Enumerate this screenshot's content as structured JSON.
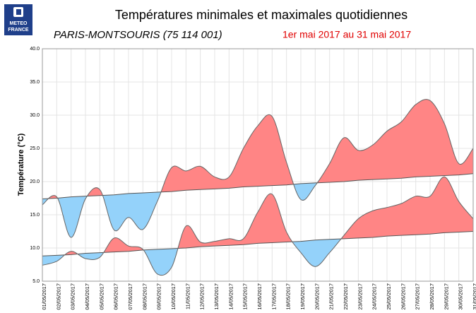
{
  "chart_data": {
    "type": "line",
    "logo": [
      "METEO",
      "FRANCE"
    ],
    "title": "Températures minimales et maximales quotidiennes",
    "subtitle": "PARIS-MONTSOURIS (75 114 001)",
    "period": "1er mai 2017 au 31 mai 2017",
    "y_label": "Température (°C)",
    "categories": [
      "01/05/2017",
      "02/05/2017",
      "03/05/2017",
      "04/05/2017",
      "05/05/2017",
      "06/05/2017",
      "07/05/2017",
      "08/05/2017",
      "09/05/2017",
      "10/05/2017",
      "11/05/2017",
      "12/05/2017",
      "13/05/2017",
      "14/05/2017",
      "15/05/2017",
      "16/05/2017",
      "17/05/2017",
      "18/05/2017",
      "19/05/2017",
      "20/05/2017",
      "21/05/2017",
      "22/05/2017",
      "23/05/2017",
      "24/05/2017",
      "25/05/2017",
      "26/05/2017",
      "27/05/2017",
      "28/05/2017",
      "29/05/2017",
      "30/05/2017",
      "31/05/2017"
    ],
    "series": [
      {
        "values": [
          16.5,
          17.7,
          11.6,
          17.4,
          18.8,
          12.7,
          14.6,
          12.8,
          17.0,
          22.1,
          21.6,
          22.3,
          20.7,
          20.7,
          25.0,
          28.4,
          29.8,
          22.9,
          17.3,
          19.4,
          22.7,
          26.6,
          24.7,
          25.5,
          27.6,
          29.0,
          31.6,
          32.2,
          28.7,
          22.7,
          25.0
        ],
        "normals": [
          17.4,
          17.5,
          17.7,
          17.8,
          17.9,
          18.0,
          18.2,
          18.3,
          18.4,
          18.5,
          18.7,
          18.8,
          18.9,
          19.0,
          19.2,
          19.3,
          19.4,
          19.5,
          19.7,
          19.8,
          19.9,
          20.0,
          20.2,
          20.3,
          20.4,
          20.5,
          20.7,
          20.8,
          20.9,
          21.0,
          21.2
        ]
      },
      {
        "values": [
          7.4,
          8.0,
          9.5,
          8.4,
          8.6,
          11.5,
          10.3,
          9.8,
          6.1,
          7.1,
          13.3,
          10.9,
          11.0,
          11.4,
          11.4,
          15.4,
          18.1,
          12.4,
          9.3,
          7.2,
          9.3,
          11.9,
          14.4,
          15.6,
          16.1,
          16.7,
          17.8,
          17.8,
          20.7,
          17.0,
          14.4
        ],
        "normals": [
          8.8,
          8.9,
          9.0,
          9.2,
          9.3,
          9.4,
          9.5,
          9.7,
          9.8,
          9.9,
          10.0,
          10.2,
          10.3,
          10.4,
          10.5,
          10.7,
          10.8,
          10.9,
          11.0,
          11.2,
          11.3,
          11.4,
          11.5,
          11.6,
          11.8,
          11.9,
          12.0,
          12.1,
          12.3,
          12.4,
          12.5
        ]
      }
    ],
    "above_color": "#ff8585",
    "below_color": "#94d2fa",
    "line_color": "#666666",
    "normal_color": "#555555",
    "ylim": [
      5,
      40
    ],
    "yticks": [
      {
        "value": 5,
        "label": "5.0"
      },
      {
        "value": 10,
        "label": "10.0"
      },
      {
        "value": 15,
        "label": "15.0"
      },
      {
        "value": 20,
        "label": "20.0"
      },
      {
        "value": 25,
        "label": "25.0"
      },
      {
        "value": 30,
        "label": "30.0"
      },
      {
        "value": 35,
        "label": "35.0"
      },
      {
        "value": 40,
        "label": "40.0"
      }
    ],
    "grid": true
  }
}
